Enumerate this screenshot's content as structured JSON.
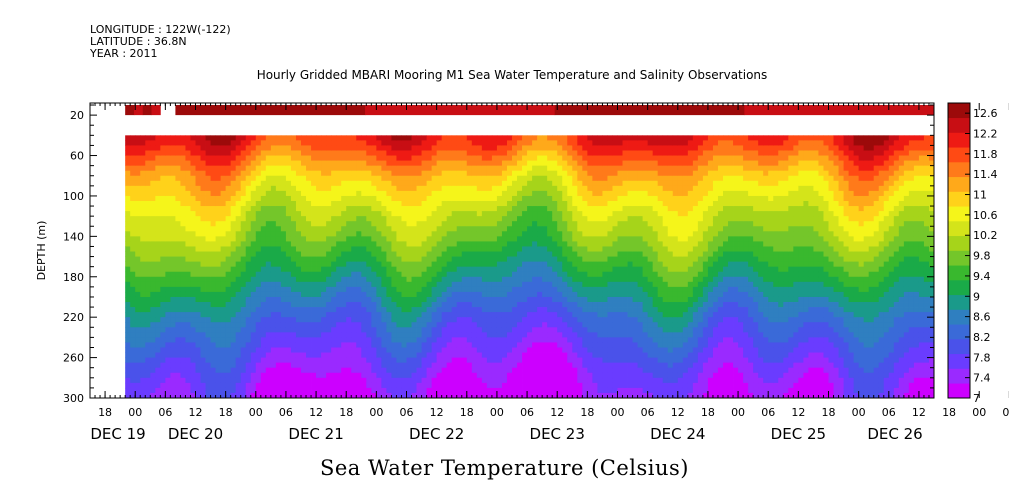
{
  "meta": {
    "longitude": "LONGITUDE : 122W(-122)",
    "latitude": "LATITUDE : 36.8N",
    "year": "YEAR : 2011"
  },
  "chart_data": {
    "type": "heatmap",
    "title": "Hourly Gridded MBARI Mooring M1 Sea Water Temperature and Salinity Observations",
    "xlabel": "Sea Water Temperature (Celsius)",
    "ylabel": "DEPTH (m)",
    "x_axis": {
      "start": "2011-12-19T15:00",
      "end": "2011-12-26T15:00",
      "hour_ticks": [
        "18",
        "00",
        "06",
        "12",
        "18",
        "00",
        "06",
        "12",
        "18",
        "00",
        "06",
        "12",
        "18",
        "00",
        "06",
        "12",
        "18",
        "00",
        "06",
        "12",
        "18",
        "00",
        "06",
        "12",
        "18",
        "00",
        "06",
        "12",
        "18",
        "00",
        "06",
        "12"
      ],
      "day_labels": [
        "DEC 19",
        "DEC 20",
        "DEC 21",
        "DEC 22",
        "DEC 23",
        "DEC 24",
        "DEC 25",
        "DEC 26"
      ]
    },
    "y_axis": {
      "ylim": [
        300,
        8
      ],
      "inverted": true,
      "tick_labels": [
        "20",
        "60",
        "100",
        "140",
        "180",
        "220",
        "260",
        "300"
      ]
    },
    "colorbar": {
      "min": 7,
      "max": 12.8,
      "tick_labels": [
        "12.6",
        "12.2",
        "11.8",
        "11.4",
        "11",
        "10.6",
        "10.2",
        "9.8",
        "9.4",
        "9",
        "8.6",
        "8.2",
        "7.8",
        "7.4",
        "7"
      ]
    },
    "data_start": "2011-12-19T22:00",
    "surface_layer": {
      "depth_range": [
        10,
        20
      ],
      "value": 12.6,
      "gap": [
        "2011-12-20T05:00",
        "2011-12-20T08:00"
      ]
    },
    "no_data_depth_range": [
      20,
      40
    ],
    "profile": {
      "depths": [
        40,
        50,
        60,
        80,
        100,
        120,
        140,
        160,
        180,
        200,
        220,
        240,
        260,
        280,
        300
      ],
      "mean_values": [
        12.1,
        11.9,
        11.6,
        11.0,
        10.6,
        10.2,
        9.9,
        9.5,
        9.1,
        8.7,
        8.3,
        8.0,
        7.7,
        7.4,
        7.2
      ]
    }
  },
  "colors": {
    "scale": [
      "#cc00ff",
      "#9a2aff",
      "#6a3cff",
      "#4a52ea",
      "#3a6ad8",
      "#2f7fc0",
      "#1a9a8a",
      "#1aaa48",
      "#39b82e",
      "#74c62a",
      "#a6d41a",
      "#d4e41a",
      "#f5f51a",
      "#ffd21a",
      "#ffa91a",
      "#ff7a1a",
      "#ff4a14",
      "#ee1a14",
      "#c80e14",
      "#9c0a0a"
    ]
  }
}
